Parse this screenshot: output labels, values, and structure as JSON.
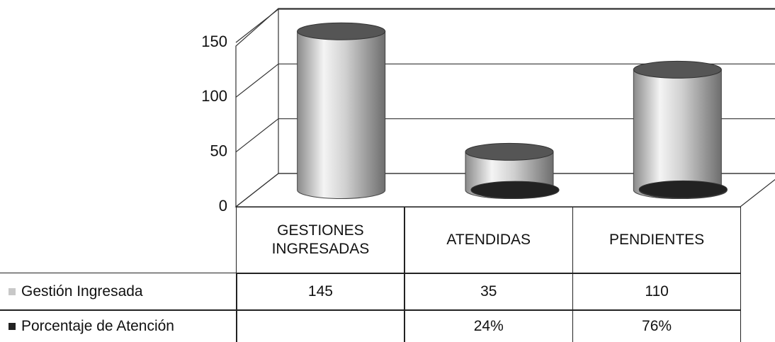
{
  "chart_data": {
    "type": "bar3d-cylinder",
    "categories": [
      "GESTIONES INGRESADAS",
      "ATENDIDAS",
      "PENDIENTES"
    ],
    "series": [
      {
        "name": "Gestión Ingresada",
        "color": "#c8c8c8",
        "values": [
          145,
          35,
          110
        ]
      },
      {
        "name": "Porcentaje de Atención",
        "color": "#222222",
        "values": [
          null,
          0.24,
          0.76
        ],
        "value_labels": [
          null,
          "24%",
          "76%"
        ]
      }
    ],
    "ylim": [
      0,
      150
    ],
    "yticks": [
      0,
      50,
      100,
      150
    ],
    "grid": true,
    "data_table": true
  }
}
